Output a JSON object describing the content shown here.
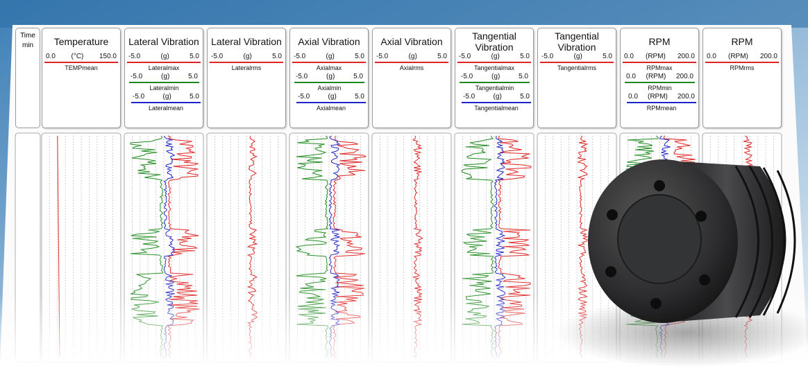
{
  "time_header": [
    "Time",
    "min"
  ],
  "colors": {
    "max": "#e02222",
    "min": "#1e8a1e",
    "mean": "#1f24c8",
    "rms": "#e02222"
  },
  "tracks": [
    {
      "title": "Temperature",
      "scales": [
        {
          "min": "0.0",
          "unit": "(°C)",
          "max": "150.0",
          "curve": "TEMPmean",
          "kind": "max"
        }
      ]
    },
    {
      "title": "Lateral Vibration",
      "scales": [
        {
          "min": "-5.0",
          "unit": "(g)",
          "max": "5.0",
          "curve": "Lateralmax",
          "kind": "max"
        },
        {
          "min": "-5.0",
          "unit": "(g)",
          "max": "5.0",
          "curve": "Lateralmin",
          "kind": "min"
        },
        {
          "min": "-5.0",
          "unit": "(g)",
          "max": "5.0",
          "curve": "Lateralmean",
          "kind": "mean"
        }
      ]
    },
    {
      "title": "Lateral Vibration",
      "scales": [
        {
          "min": "-5.0",
          "unit": "(g)",
          "max": "5.0",
          "curve": "Lateralrms",
          "kind": "rms"
        }
      ]
    },
    {
      "title": "Axial Vibration",
      "scales": [
        {
          "min": "-5.0",
          "unit": "(g)",
          "max": "5.0",
          "curve": "Axialmax",
          "kind": "max"
        },
        {
          "min": "-5.0",
          "unit": "(g)",
          "max": "5.0",
          "curve": "Axialmin",
          "kind": "min"
        },
        {
          "min": "-5.0",
          "unit": "(g)",
          "max": "5.0",
          "curve": "Axialmean",
          "kind": "mean"
        }
      ]
    },
    {
      "title": "Axial Vibration",
      "scales": [
        {
          "min": "-5.0",
          "unit": "(g)",
          "max": "5.0",
          "curve": "Axialrms",
          "kind": "rms"
        }
      ]
    },
    {
      "title": "Tangential Vibration",
      "scales": [
        {
          "min": "-5.0",
          "unit": "(g)",
          "max": "5.0",
          "curve": "Tangentialmax",
          "kind": "max"
        },
        {
          "min": "-5.0",
          "unit": "(g)",
          "max": "5.0",
          "curve": "Tangentialmin",
          "kind": "min"
        },
        {
          "min": "-5.0",
          "unit": "(g)",
          "max": "5.0",
          "curve": "Tangentialmean",
          "kind": "mean"
        }
      ]
    },
    {
      "title": "Tangential Vibration",
      "scales": [
        {
          "min": "-5.0",
          "unit": "(g)",
          "max": "5.0",
          "curve": "Tangentialrms",
          "kind": "rms"
        }
      ]
    },
    {
      "title": "RPM",
      "scales": [
        {
          "min": "0.0",
          "unit": "(RPM)",
          "max": "200.0",
          "curve": "RPMmax",
          "kind": "max"
        },
        {
          "min": "0.0",
          "unit": "(RPM)",
          "max": "200.0",
          "curve": "RPMmin",
          "kind": "min"
        },
        {
          "min": "0.0",
          "unit": "(RPM)",
          "max": "200.0",
          "curve": "RPMmean",
          "kind": "mean"
        }
      ]
    },
    {
      "title": "RPM",
      "scales": [
        {
          "min": "0.0",
          "unit": "(RPM)",
          "max": "200.0",
          "curve": "RPMrms",
          "kind": "rms"
        }
      ]
    }
  ]
}
